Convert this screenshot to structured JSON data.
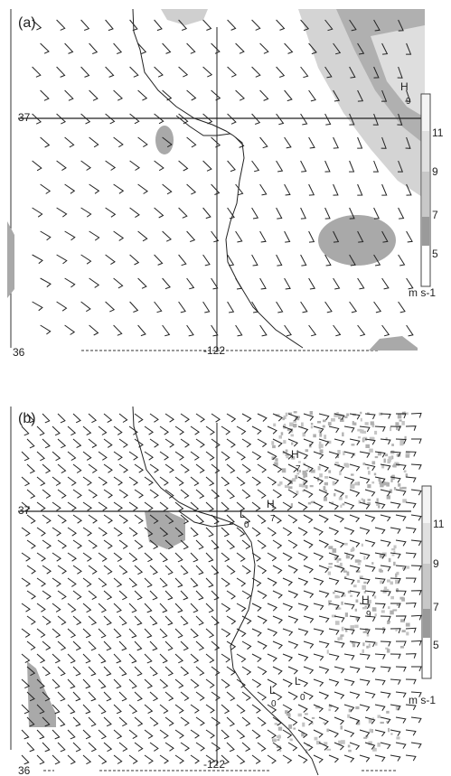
{
  "panels": [
    {
      "id": "a",
      "label": "(a)",
      "lat_label": "37",
      "lat_label_bottom": "36",
      "lon_label": "-122",
      "highs": [
        {
          "text": "H",
          "value": "9"
        }
      ],
      "lows": [],
      "colorbar": {
        "ticks": [
          "11",
          "9",
          "7",
          "5"
        ],
        "unit": "m s-1"
      }
    },
    {
      "id": "b",
      "label": "(b)",
      "lat_label": "37",
      "lat_label_bottom": "36",
      "lon_label": "-122",
      "highs": [
        {
          "text": "H",
          "value": "7"
        },
        {
          "text": "H",
          "value": "7"
        },
        {
          "text": "H",
          "value": "9"
        }
      ],
      "lows": [
        {
          "text": "L",
          "value": "0"
        },
        {
          "text": "L",
          "value": "0"
        },
        {
          "text": "L",
          "value": "0"
        }
      ],
      "colorbar": {
        "ticks": [
          "11",
          "9",
          "7",
          "5"
        ],
        "unit": "m s-1"
      }
    }
  ],
  "colors": {
    "shade_light": "#d9d9d9",
    "shade_mid": "#bdbdbd",
    "shade_dark": "#a9a9a9",
    "line": "#222222"
  }
}
